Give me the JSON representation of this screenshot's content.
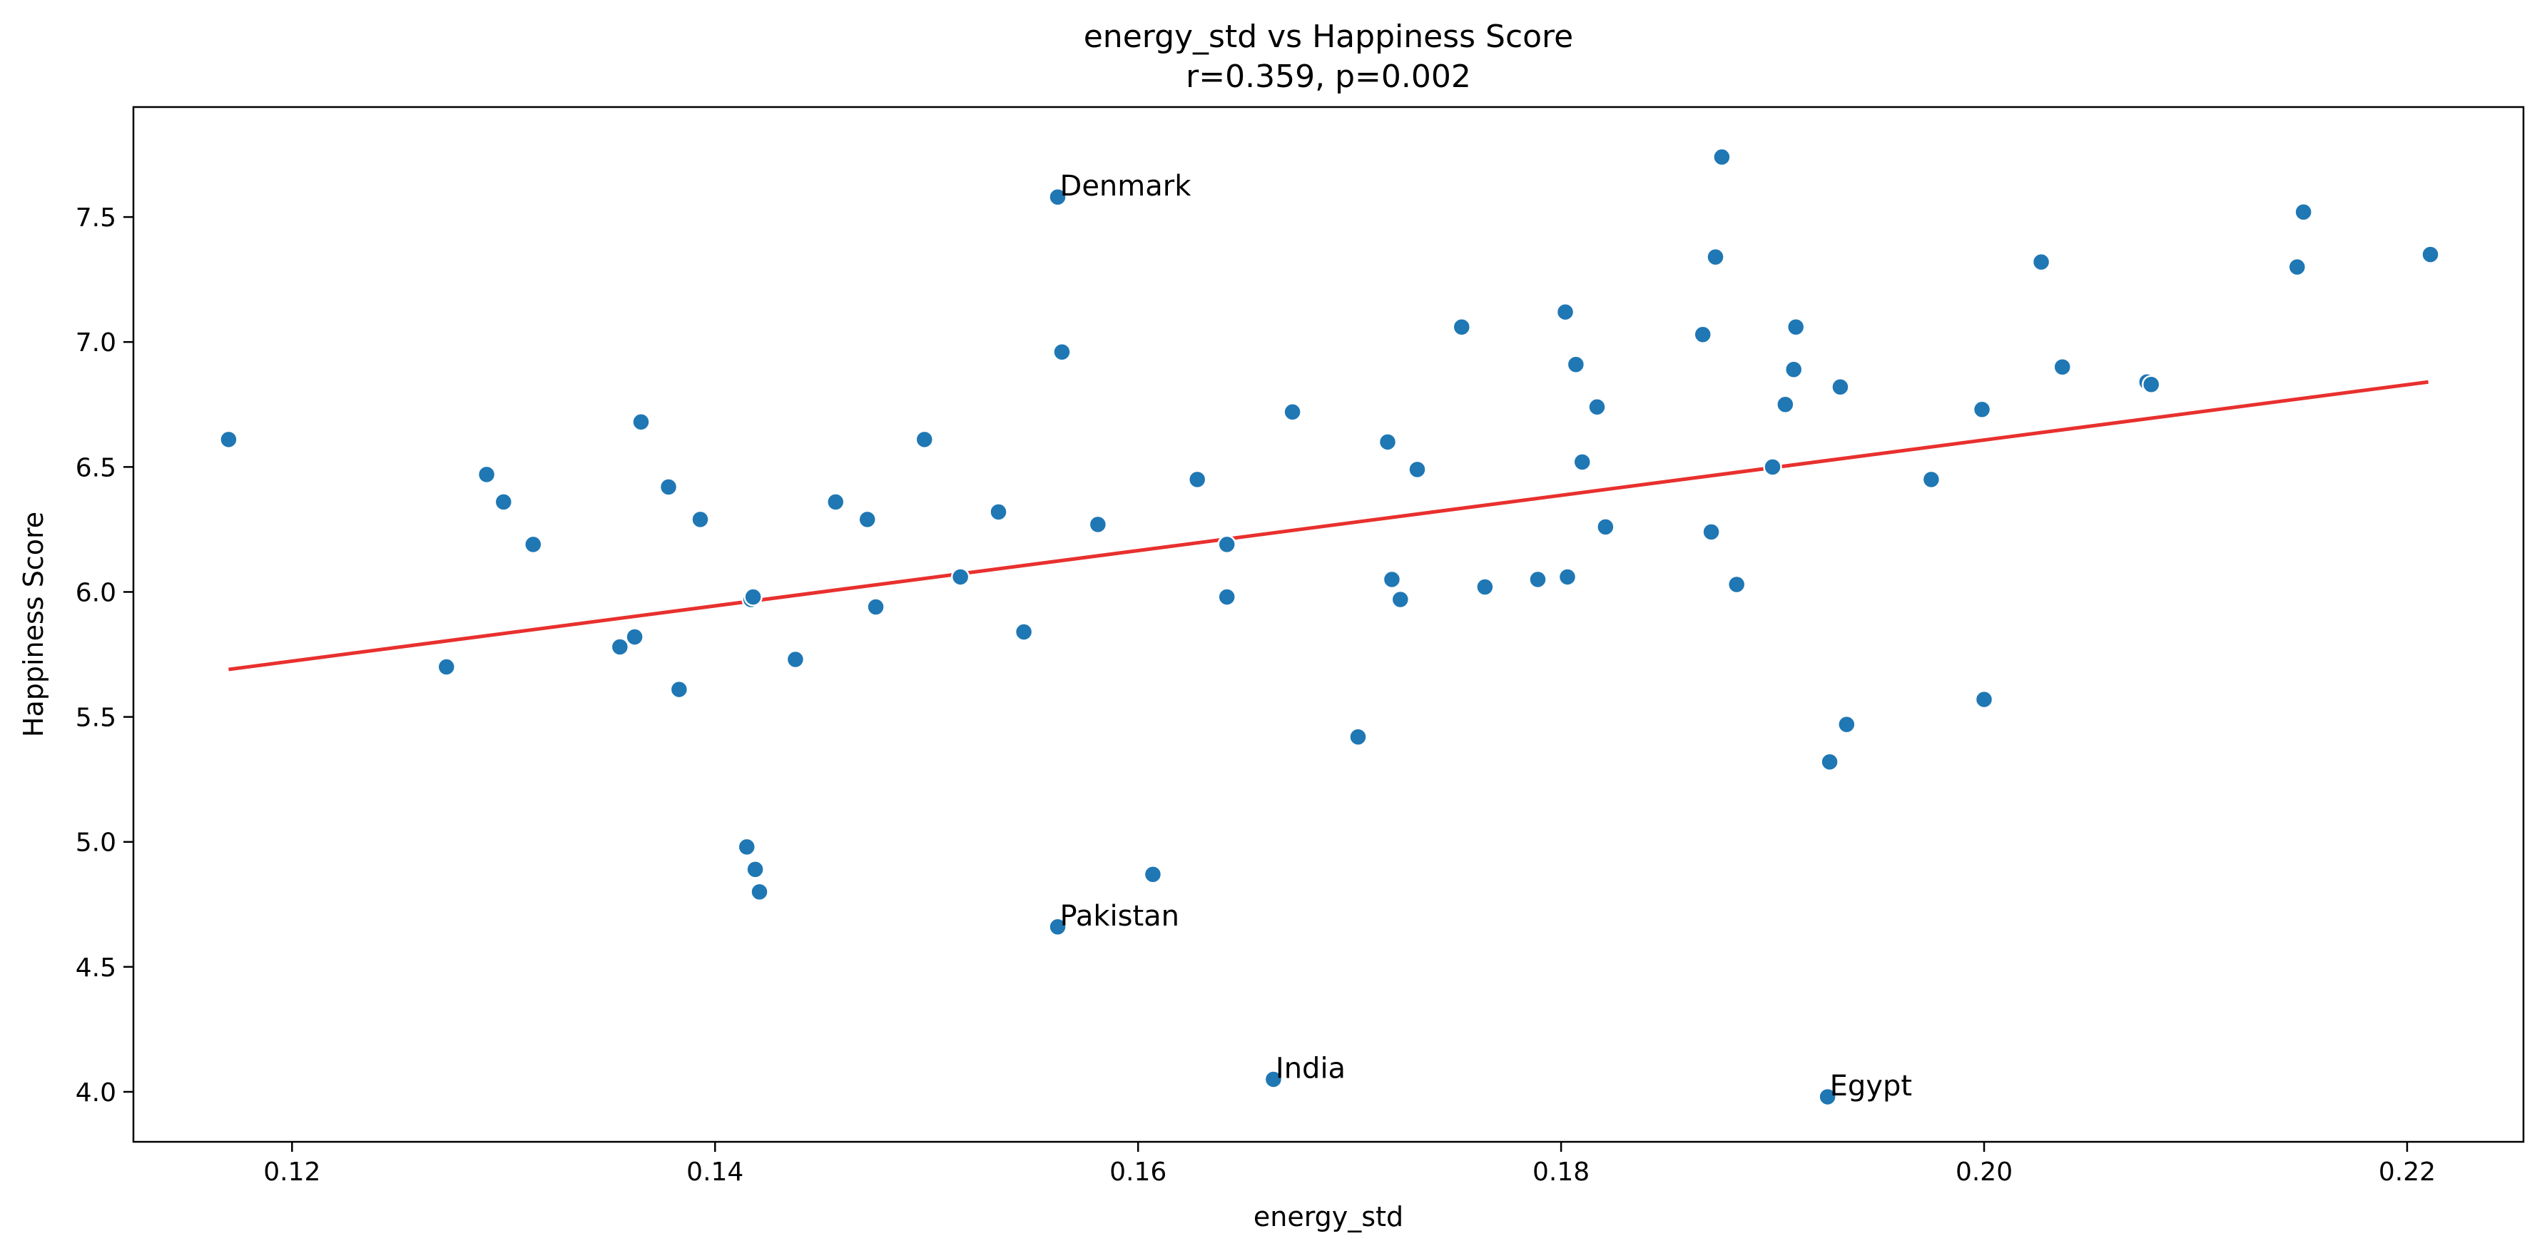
{
  "chart_data": {
    "type": "scatter",
    "title": "energy_std vs Happiness Score",
    "subtitle": "r=0.359, p=0.002",
    "xlabel": "energy_std",
    "ylabel": "Happiness Score",
    "xlim": [
      0.1125,
      0.2255
    ],
    "ylim": [
      3.8,
      7.94
    ],
    "xticks": [
      0.12,
      0.14,
      0.16,
      0.18,
      0.2,
      0.22
    ],
    "xtick_labels": [
      "0.12",
      "0.14",
      "0.16",
      "0.18",
      "0.20",
      "0.22"
    ],
    "yticks": [
      4.0,
      4.5,
      5.0,
      5.5,
      6.0,
      6.5,
      7.0,
      7.5
    ],
    "ytick_labels": [
      "4.0",
      "4.5",
      "5.0",
      "5.5",
      "6.0",
      "6.5",
      "7.0",
      "7.5"
    ],
    "point_color": "#1f77b4",
    "fit_color": "#e8302e",
    "fit_line": {
      "x": [
        0.117,
        0.221
      ],
      "y": [
        5.69,
        6.84
      ]
    },
    "points": [
      {
        "x": 0.117,
        "y": 6.61
      },
      {
        "x": 0.1273,
        "y": 5.7
      },
      {
        "x": 0.1292,
        "y": 6.47
      },
      {
        "x": 0.13,
        "y": 6.36
      },
      {
        "x": 0.1314,
        "y": 6.19
      },
      {
        "x": 0.1355,
        "y": 5.78
      },
      {
        "x": 0.1362,
        "y": 5.82
      },
      {
        "x": 0.1365,
        "y": 6.68
      },
      {
        "x": 0.1378,
        "y": 6.42
      },
      {
        "x": 0.1383,
        "y": 5.61
      },
      {
        "x": 0.1393,
        "y": 6.29
      },
      {
        "x": 0.1415,
        "y": 4.98
      },
      {
        "x": 0.1417,
        "y": 5.97
      },
      {
        "x": 0.1418,
        "y": 5.98
      },
      {
        "x": 0.1419,
        "y": 4.89
      },
      {
        "x": 0.1421,
        "y": 4.8
      },
      {
        "x": 0.1438,
        "y": 5.73
      },
      {
        "x": 0.1457,
        "y": 6.36
      },
      {
        "x": 0.1472,
        "y": 6.29
      },
      {
        "x": 0.1476,
        "y": 5.94
      },
      {
        "x": 0.1499,
        "y": 6.61
      },
      {
        "x": 0.1516,
        "y": 6.06
      },
      {
        "x": 0.1534,
        "y": 6.32
      },
      {
        "x": 0.1546,
        "y": 5.84
      },
      {
        "x": 0.1562,
        "y": 7.58,
        "label": "Denmark"
      },
      {
        "x": 0.1562,
        "y": 4.66,
        "label": "Pakistan"
      },
      {
        "x": 0.1564,
        "y": 6.96
      },
      {
        "x": 0.1581,
        "y": 6.27
      },
      {
        "x": 0.1607,
        "y": 4.87
      },
      {
        "x": 0.1628,
        "y": 6.45
      },
      {
        "x": 0.1642,
        "y": 6.19
      },
      {
        "x": 0.1642,
        "y": 5.98
      },
      {
        "x": 0.1664,
        "y": 4.05,
        "label": "India"
      },
      {
        "x": 0.1673,
        "y": 6.72
      },
      {
        "x": 0.1704,
        "y": 5.42
      },
      {
        "x": 0.1718,
        "y": 6.6
      },
      {
        "x": 0.172,
        "y": 6.05
      },
      {
        "x": 0.1724,
        "y": 5.97
      },
      {
        "x": 0.1732,
        "y": 6.49
      },
      {
        "x": 0.1753,
        "y": 7.06
      },
      {
        "x": 0.1764,
        "y": 6.02
      },
      {
        "x": 0.1789,
        "y": 6.05
      },
      {
        "x": 0.1802,
        "y": 7.12
      },
      {
        "x": 0.1803,
        "y": 6.06
      },
      {
        "x": 0.1807,
        "y": 6.91
      },
      {
        "x": 0.181,
        "y": 6.52
      },
      {
        "x": 0.1817,
        "y": 6.74
      },
      {
        "x": 0.1821,
        "y": 6.26
      },
      {
        "x": 0.1867,
        "y": 7.03
      },
      {
        "x": 0.1871,
        "y": 6.24
      },
      {
        "x": 0.1873,
        "y": 7.34
      },
      {
        "x": 0.1876,
        "y": 7.74
      },
      {
        "x": 0.1883,
        "y": 6.03
      },
      {
        "x": 0.19,
        "y": 6.5
      },
      {
        "x": 0.1906,
        "y": 6.75
      },
      {
        "x": 0.191,
        "y": 6.89
      },
      {
        "x": 0.1911,
        "y": 7.06
      },
      {
        "x": 0.1926,
        "y": 3.98,
        "label": "Egypt"
      },
      {
        "x": 0.1927,
        "y": 5.32
      },
      {
        "x": 0.1932,
        "y": 6.82
      },
      {
        "x": 0.1935,
        "y": 5.47
      },
      {
        "x": 0.1975,
        "y": 6.45
      },
      {
        "x": 0.1999,
        "y": 6.73
      },
      {
        "x": 0.2,
        "y": 5.57
      },
      {
        "x": 0.2027,
        "y": 7.32
      },
      {
        "x": 0.2037,
        "y": 6.9
      },
      {
        "x": 0.2077,
        "y": 6.84
      },
      {
        "x": 0.2079,
        "y": 6.83
      },
      {
        "x": 0.2148,
        "y": 7.3
      },
      {
        "x": 0.2151,
        "y": 7.52
      },
      {
        "x": 0.2211,
        "y": 7.35
      }
    ]
  }
}
